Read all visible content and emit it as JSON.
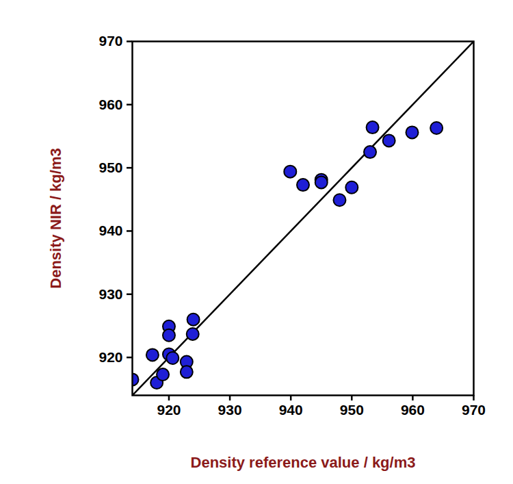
{
  "chart_data": {
    "type": "scatter",
    "x_label": "Density reference value / kg/m3",
    "y_label": "Density NIR / kg/m3",
    "x": [
      914.0,
      917.3,
      918.0,
      919.0,
      920.0,
      920.0,
      920.0,
      920.6,
      922.9,
      922.9,
      924.0,
      923.9,
      939.9,
      942.0,
      945.0,
      945.0,
      948.0,
      950.0,
      953.0,
      953.4,
      956.1,
      959.9,
      963.9
    ],
    "values": [
      916.5,
      920.4,
      916.0,
      917.3,
      924.9,
      923.5,
      920.5,
      919.9,
      919.3,
      917.7,
      926.0,
      923.7,
      949.4,
      947.3,
      948.1,
      947.7,
      944.9,
      946.9,
      952.5,
      956.4,
      954.3,
      955.6,
      956.3
    ],
    "color": "#1f1fd6",
    "marker": "circle",
    "xlim": [
      914,
      970
    ],
    "ylim": [
      914,
      970
    ],
    "xticks": [
      920,
      930,
      940,
      950,
      960,
      970
    ],
    "yticks": [
      920,
      930,
      940,
      950,
      960,
      970
    ],
    "grid": false,
    "diagonal": {
      "x": [
        914,
        970
      ],
      "y": [
        914,
        970
      ],
      "color": "#000000"
    }
  }
}
